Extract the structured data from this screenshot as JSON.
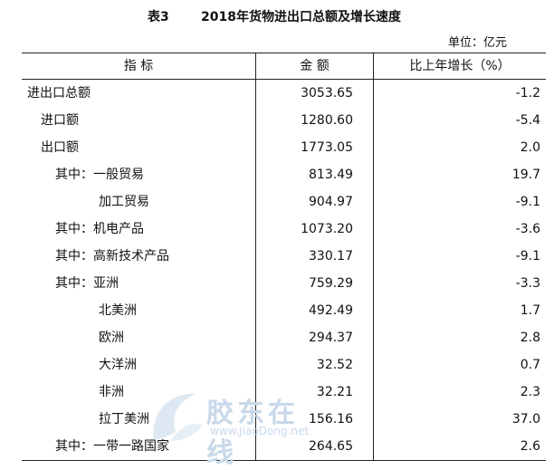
{
  "title": {
    "number": "表3",
    "text": "2018年货物进出口总额及增长速度"
  },
  "unit_label": "单位：亿元",
  "columns": [
    "指  标",
    "金  额",
    "比上年增长（%）"
  ],
  "rows": [
    {
      "level": 0,
      "prefix": "",
      "label": "进出口总额",
      "amount": "3053.65",
      "change": "-1.2"
    },
    {
      "level": 1,
      "prefix": "",
      "label": "进口额",
      "amount": "1280.60",
      "change": "-5.4"
    },
    {
      "level": 1,
      "prefix": "",
      "label": "出口额",
      "amount": "1773.05",
      "change": "2.0"
    },
    {
      "level": 2,
      "prefix": "其中：",
      "label": "一般贸易",
      "amount": "813.49",
      "change": "19.7"
    },
    {
      "level": 3,
      "prefix": "",
      "label": "加工贸易",
      "amount": "904.97",
      "change": "-9.1"
    },
    {
      "level": 2,
      "prefix": "其中：",
      "label": "机电产品",
      "amount": "1073.20",
      "change": "-3.6"
    },
    {
      "level": 2,
      "prefix": "其中：",
      "label": "高新技术产品",
      "amount": "330.17",
      "change": "-9.1"
    },
    {
      "level": 2,
      "prefix": "其中：",
      "label": "亚洲",
      "amount": "759.29",
      "change": "-3.3"
    },
    {
      "level": 3,
      "prefix": "",
      "label": "北美洲",
      "amount": "492.49",
      "change": "1.7"
    },
    {
      "level": 3,
      "prefix": "",
      "label": "欧洲",
      "amount": "294.37",
      "change": "2.8"
    },
    {
      "level": 3,
      "prefix": "",
      "label": "大洋洲",
      "amount": "32.52",
      "change": "0.7"
    },
    {
      "level": 3,
      "prefix": "",
      "label": "非洲",
      "amount": "32.21",
      "change": "2.3"
    },
    {
      "level": 3,
      "prefix": "",
      "label": "拉丁美洲",
      "amount": "156.16",
      "change": "37.0"
    },
    {
      "level": 2,
      "prefix": "其中：",
      "label": "一带一路国家",
      "amount": "264.65",
      "change": "2.6"
    }
  ],
  "watermark": {
    "text": "胶东在线",
    "url": "www.JiaoDong.net"
  }
}
